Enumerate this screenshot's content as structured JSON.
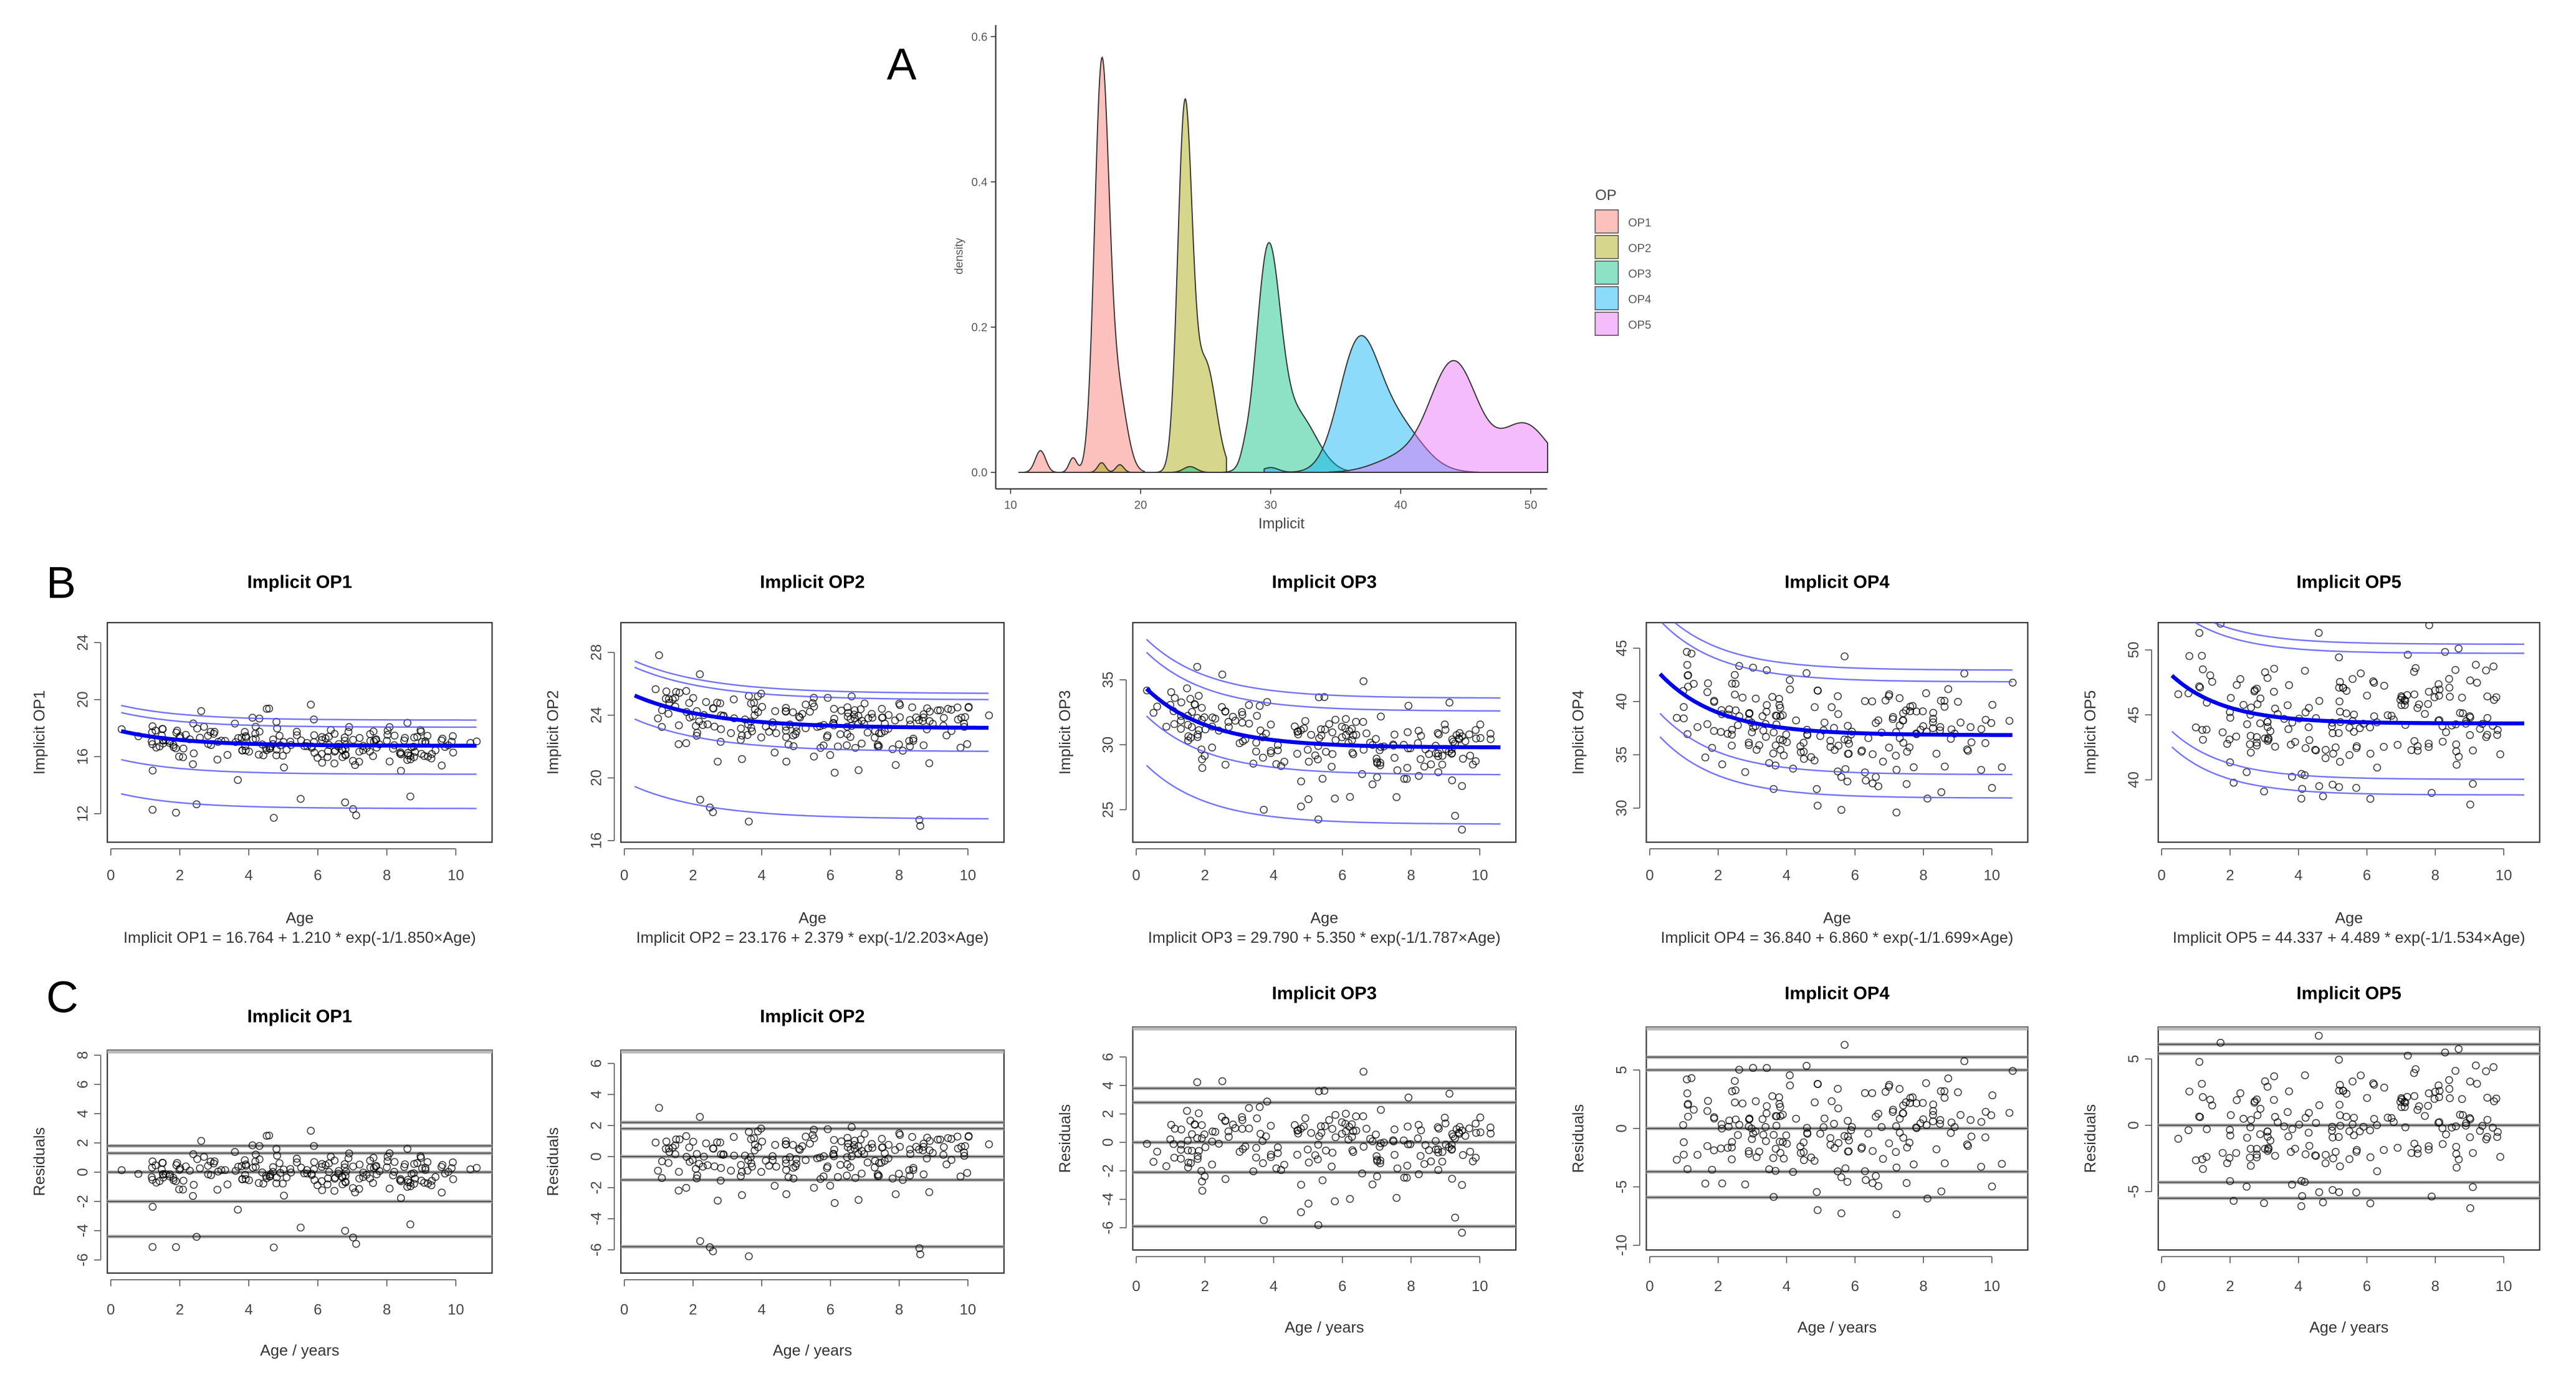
{
  "figure": {
    "panel_labels": [
      "A",
      "B",
      "C"
    ]
  },
  "chart_data": [
    {
      "type": "area",
      "panel": "A",
      "xlabel": "Implicit",
      "ylabel": "density",
      "xlim": [
        8.9,
        52
      ],
      "ylim": [
        -0.02,
        0.62
      ],
      "xticks": [
        "10",
        "20",
        "30",
        "40",
        "50"
      ],
      "yticks": [
        "0.0",
        "0.2",
        "0.4",
        "0.6"
      ],
      "grid": false,
      "legend": {
        "title": "OP",
        "position": "right"
      },
      "series": [
        {
          "name": "OP1",
          "color": "#F8766D",
          "range": [
            10.6,
            20.3
          ],
          "peak": [
            17.0,
            0.58
          ],
          "components": [
            [
              17.0,
              0.55,
              0.75
            ],
            [
              18.2,
              0.7,
              0.2
            ],
            [
              12.3,
              0.4,
              0.03
            ],
            [
              14.8,
              0.3,
              0.015
            ]
          ]
        },
        {
          "name": "OP2",
          "color": "#A3A500",
          "range": [
            16.0,
            26.6
          ],
          "peak": [
            23.4,
            0.52
          ],
          "components": [
            [
              23.4,
              0.55,
              0.68
            ],
            [
              25.0,
              0.8,
              0.3
            ],
            [
              17.0,
              0.3,
              0.01
            ],
            [
              18.4,
              0.3,
              0.008
            ]
          ]
        },
        {
          "name": "OP3",
          "color": "#00BF7D",
          "range": [
            22.0,
            36.0
          ],
          "peak": [
            29.8,
            0.32
          ],
          "components": [
            [
              29.8,
              0.9,
              0.65
            ],
            [
              32.0,
              1.5,
              0.3
            ],
            [
              23.8,
              0.5,
              0.01
            ],
            [
              28.0,
              0.3,
              0.006
            ]
          ]
        },
        {
          "name": "OP4",
          "color": "#00B0F6",
          "range": [
            29.5,
            46.0
          ],
          "peak": [
            36.8,
            0.195
          ],
          "components": [
            [
              36.7,
              1.5,
              0.6
            ],
            [
              39.5,
              2.0,
              0.35
            ],
            [
              30.0,
              0.6,
              0.01
            ]
          ]
        },
        {
          "name": "OP5",
          "color": "#E76BF3",
          "range": [
            34.5,
            51.3
          ],
          "peak": [
            44.2,
            0.155
          ],
          "components": [
            [
              44.1,
              1.8,
              0.68
            ],
            [
              49.5,
              1.8,
              0.3
            ],
            [
              40.0,
              2.0,
              0.1
            ]
          ]
        }
      ]
    },
    {
      "type": "scatter",
      "panel": "B",
      "subplots": [
        {
          "title": "Implicit OP1",
          "xlabel": "Age",
          "ylabel": "Implicit OP1",
          "formula": "Implicit OP1 = 16.764 + 1.210 * exp(-1/1.850×Age)",
          "model": {
            "a": 16.764,
            "b": 1.21,
            "tau": 1.85
          },
          "xlim": [
            -0.1,
            11.05
          ],
          "ylim": [
            10.0,
            25.4
          ],
          "xticks": [
            "0",
            "2",
            "4",
            "6",
            "8",
            "10"
          ],
          "yticks": [
            "12",
            "16",
            "20",
            "24"
          ],
          "band_offsets": [
            1.8,
            1.3,
            -2.0,
            -4.4
          ],
          "residual_sd": 0.7
        },
        {
          "title": "Implicit OP2",
          "xlabel": "Age",
          "ylabel": "Implicit OP2",
          "formula": "Implicit OP2 = 23.176 + 2.379 * exp(-1/2.203×Age)",
          "model": {
            "a": 23.176,
            "b": 2.379,
            "tau": 2.203
          },
          "xlim": [
            -0.1,
            11.05
          ],
          "ylim": [
            15.9,
            29.9
          ],
          "xticks": [
            "0",
            "2",
            "4",
            "6",
            "8",
            "10"
          ],
          "yticks": [
            "16",
            "20",
            "24",
            "28"
          ],
          "band_offsets": [
            2.2,
            1.8,
            -1.5,
            -5.8
          ],
          "residual_sd": 0.9
        },
        {
          "title": "Implicit OP3",
          "xlabel": "Age",
          "ylabel": "Implicit OP3",
          "formula": "Implicit OP3 = 29.790 + 5.350 * exp(-1/1.787×Age)",
          "model": {
            "a": 29.79,
            "b": 5.35,
            "tau": 1.787
          },
          "xlim": [
            -0.1,
            11.05
          ],
          "ylim": [
            22.5,
            39.4
          ],
          "xticks": [
            "0",
            "2",
            "4",
            "6",
            "8",
            "10"
          ],
          "yticks": [
            "25",
            "30",
            "35"
          ],
          "band_offsets": [
            3.8,
            2.8,
            -2.1,
            -5.9
          ],
          "residual_sd": 1.3
        },
        {
          "title": "Implicit OP4",
          "xlabel": "Age",
          "ylabel": "Implicit OP4",
          "formula": "Implicit OP4 = 36.840 + 6.860 * exp(-1/1.699×Age)",
          "model": {
            "a": 36.84,
            "b": 6.86,
            "tau": 1.699
          },
          "xlim": [
            -0.1,
            11.05
          ],
          "ylim": [
            26.8,
            47.4
          ],
          "xticks": [
            "0",
            "2",
            "4",
            "6",
            "8",
            "10"
          ],
          "yticks": [
            "30",
            "35",
            "40",
            "45"
          ],
          "band_offsets": [
            6.1,
            5.0,
            -3.7,
            -5.9
          ],
          "residual_sd": 2.2
        },
        {
          "title": "Implicit OP5",
          "xlabel": "Age",
          "ylabel": "Implicit OP5",
          "formula": "Implicit OP5 = 44.337 + 4.489 * exp(-1/1.534×Age)",
          "model": {
            "a": 44.337,
            "b": 4.489,
            "tau": 1.534
          },
          "xlim": [
            -0.1,
            11.05
          ],
          "ylim": [
            35.2,
            52.1
          ],
          "xticks": [
            "0",
            "2",
            "4",
            "6",
            "8",
            "10"
          ],
          "yticks": [
            "40",
            "45",
            "50"
          ],
          "band_offsets": [
            6.1,
            5.4,
            -4.3,
            -5.5
          ],
          "residual_sd": 2.8
        }
      ]
    },
    {
      "type": "scatter",
      "panel": "C",
      "subplots": [
        {
          "title": "Implicit OP1",
          "xlabel": "Age / years",
          "ylabel": "Residuals",
          "xlim": [
            -0.1,
            11.05
          ],
          "ylim": [
            -6.9,
            8.34
          ],
          "xticks": [
            "0",
            "2",
            "4",
            "6",
            "8",
            "10"
          ],
          "yticks": [
            "-6",
            "-4",
            "-2",
            "0",
            "2",
            "4",
            "6",
            "8"
          ],
          "hlines": [
            1.8,
            1.3,
            0,
            -2.0,
            -4.4
          ]
        },
        {
          "title": "Implicit OP2",
          "xlabel": "Age / years",
          "ylabel": "Residuals",
          "xlim": [
            -0.1,
            11.05
          ],
          "ylim": [
            -7.5,
            6.85
          ],
          "xticks": [
            "0",
            "2",
            "4",
            "6",
            "8",
            "10"
          ],
          "yticks": [
            "-6",
            "-4",
            "-2",
            "0",
            "2",
            "4",
            "6"
          ],
          "hlines": [
            2.2,
            1.8,
            0,
            -1.5,
            -5.8
          ]
        },
        {
          "title": "Implicit OP3",
          "xlabel": "Age / years",
          "ylabel": "Residuals",
          "xlim": [
            -0.1,
            11.05
          ],
          "ylim": [
            -7.56,
            8.1
          ],
          "xticks": [
            "0",
            "2",
            "4",
            "6",
            "8",
            "10"
          ],
          "yticks": [
            "-6",
            "-4",
            "-2",
            "0",
            "2",
            "4",
            "6"
          ],
          "hlines": [
            3.8,
            2.8,
            0,
            -2.1,
            -5.9
          ]
        },
        {
          "title": "Implicit OP4",
          "xlabel": "Age / years",
          "ylabel": "Residuals",
          "xlim": [
            -0.1,
            11.05
          ],
          "ylim": [
            -10.4,
            8.67
          ],
          "xticks": [
            "0",
            "2",
            "4",
            "6",
            "8",
            "10"
          ],
          "yticks": [
            "-10",
            "-5",
            "0",
            "5"
          ],
          "hlines": [
            6.1,
            5.0,
            0,
            -3.7,
            -5.9
          ]
        },
        {
          "title": "Implicit OP5",
          "xlabel": "Age / years",
          "ylabel": "Residuals",
          "xlim": [
            -0.1,
            11.05
          ],
          "ylim": [
            -9.4,
            7.4
          ],
          "xticks": [
            "0",
            "2",
            "4",
            "6",
            "8",
            "10"
          ],
          "yticks": [
            "-5",
            "0",
            "5"
          ],
          "hlines": [
            6.1,
            5.4,
            0,
            -4.3,
            -5.5
          ]
        }
      ]
    }
  ]
}
